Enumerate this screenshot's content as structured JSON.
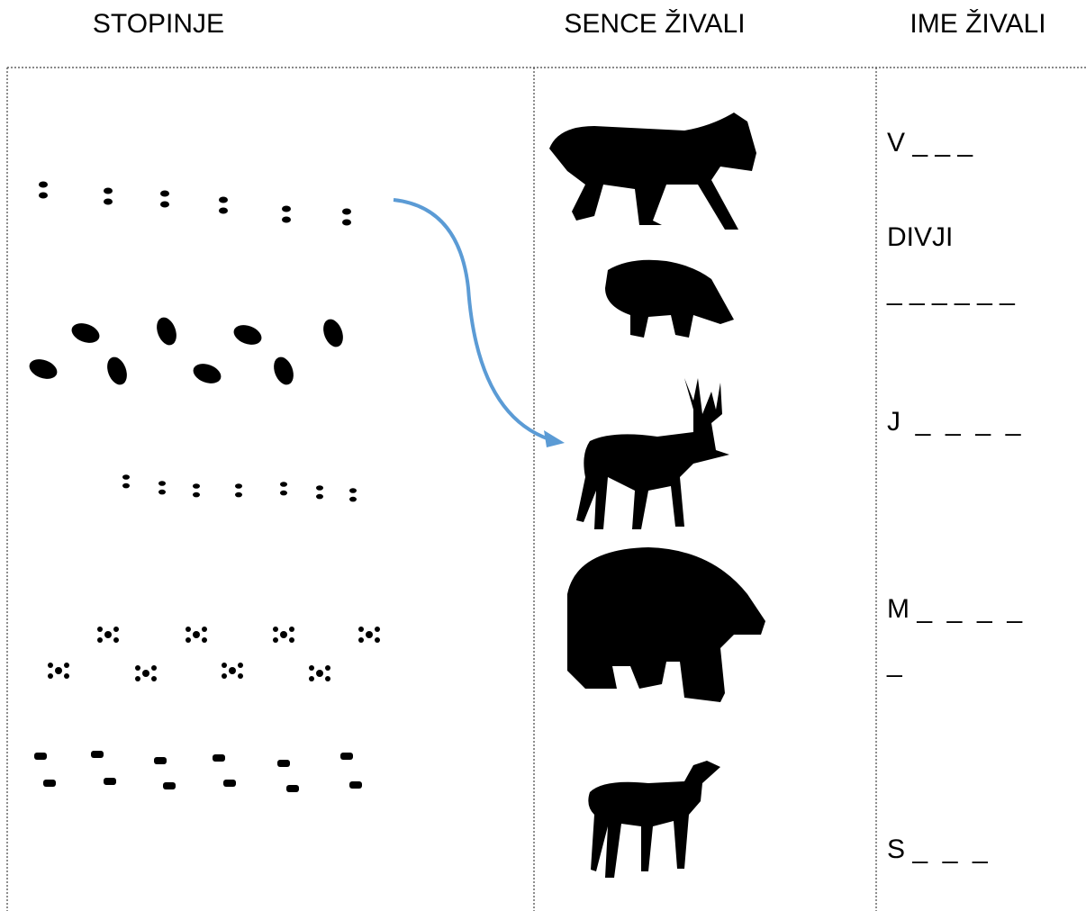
{
  "header": {
    "columns": [
      "STOPINJE",
      "SENCE ŽIVALI",
      "IME ŽIVALI"
    ]
  },
  "answers": [
    "V _ _ _",
    "DIVJI",
    "_ _ _ _ _ _",
    "J  _  _  _  _",
    "M _  _  _  _",
    "_",
    "S _  _  _"
  ]
}
